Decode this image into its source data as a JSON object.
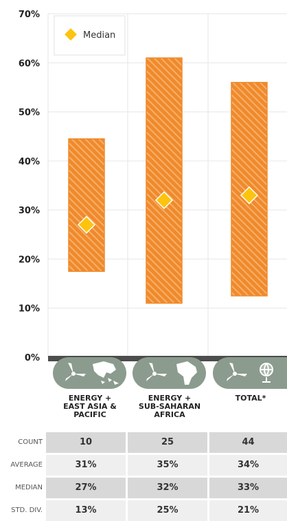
{
  "chart_data": {
    "type": "bar",
    "categories": [
      "ENERGY +\nEAST ASIA &\nPACIFIC",
      "ENERGY +\nSUB-SAHARAN\nAFRICA",
      "TOTAL*"
    ],
    "ranges": [
      [
        17.5,
        44.5
      ],
      [
        11,
        61
      ],
      [
        12.5,
        56
      ]
    ],
    "median_values": [
      27,
      32,
      33
    ],
    "median_label": "Median",
    "ylim": [
      0,
      70
    ],
    "yticks": [
      "0%",
      "10%",
      "20%",
      "30%",
      "40%",
      "50%",
      "60%",
      "70%"
    ],
    "grid": true,
    "legend_position": "top-left"
  },
  "colors": {
    "bar": "#f08a2b",
    "bar_stripe": "#f6b06c",
    "median": "#fdc40f",
    "icon_bg": "#8b9b8e",
    "grid": "#e6e6e6",
    "table_dark": "#d8d8d8",
    "table_light": "#efefef"
  },
  "icons": [
    "wind-turbine-icon",
    "asia-pacific-map-icon",
    "wind-turbine-icon",
    "africa-map-icon",
    "wind-turbine-icon",
    "globe-icon"
  ],
  "stats": {
    "rows": [
      {
        "label": "COUNT",
        "values": [
          "10",
          "25",
          "44"
        ]
      },
      {
        "label": "AVERAGE",
        "values": [
          "31%",
          "35%",
          "34%"
        ]
      },
      {
        "label": "MEDIAN",
        "values": [
          "27%",
          "32%",
          "33%"
        ]
      },
      {
        "label": "STD. DIV.",
        "values": [
          "13%",
          "25%",
          "21%"
        ]
      }
    ]
  }
}
